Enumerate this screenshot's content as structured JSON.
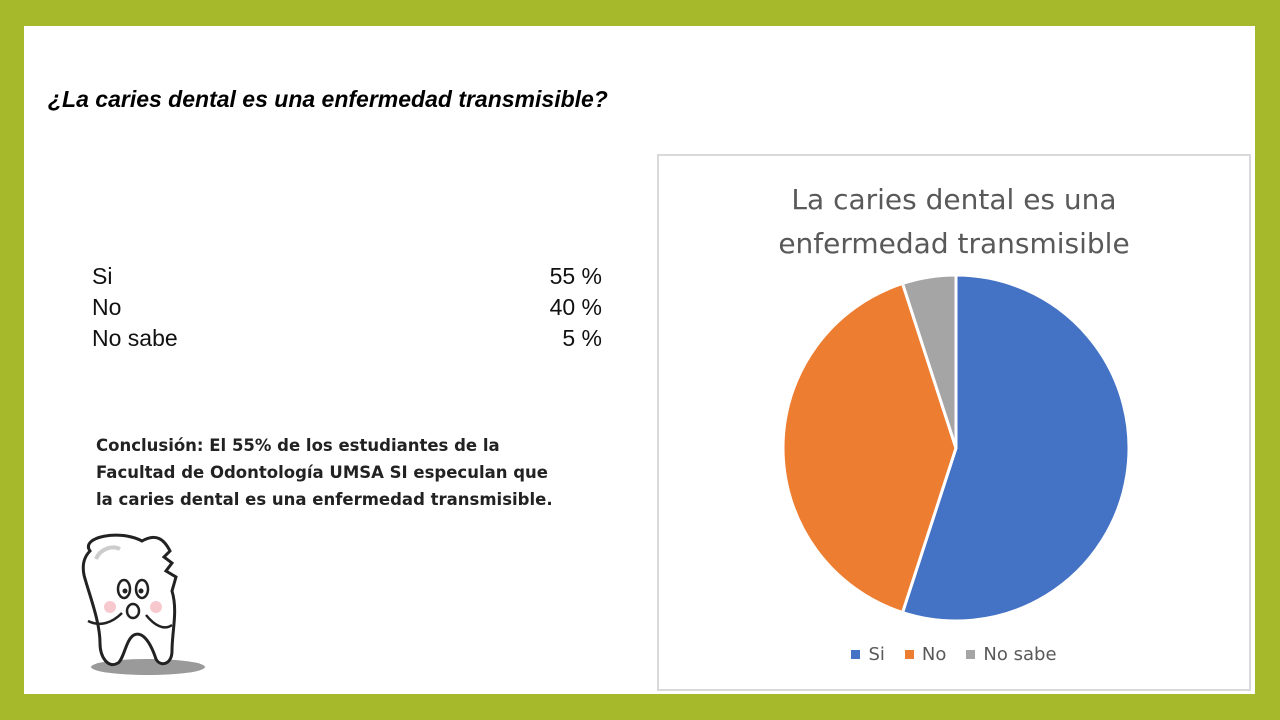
{
  "question": "¿La caries dental es una enfermedad transmisible?",
  "stats": [
    {
      "label": "Si",
      "value": "55 %"
    },
    {
      "label": "No",
      "value": "40 %"
    },
    {
      "label": "No sabe",
      "value": "5 %"
    }
  ],
  "conclusion": {
    "line1": "Conclusión: El 55% de los estudiantes de la",
    "line2": "Facultad de Odontología UMSA SI especulan que",
    "line3": "la caries dental es una enfermedad transmisible."
  },
  "colors": {
    "frame": "#a5b92a",
    "si": "#4472c4",
    "no": "#ed7d31",
    "no_sabe": "#a5a5a5"
  },
  "chart_data": {
    "type": "pie",
    "title": "La caries dental es una enfermedad transmisible",
    "title_lines": [
      "La caries dental es una",
      "enfermedad transmisible"
    ],
    "categories": [
      "Si",
      "No",
      "No sabe"
    ],
    "values": [
      55,
      40,
      5
    ],
    "colors": [
      "#4472c4",
      "#ed7d31",
      "#a5a5a5"
    ],
    "legend_position": "bottom"
  }
}
